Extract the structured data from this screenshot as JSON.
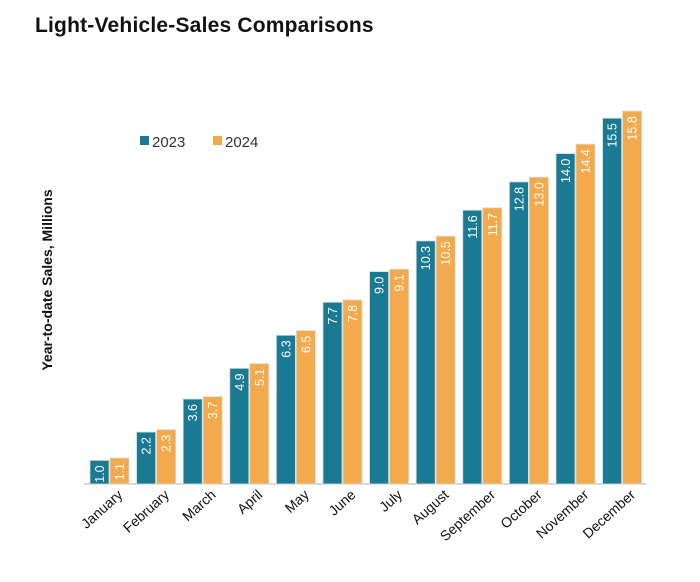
{
  "chart_data": {
    "type": "bar",
    "title": "Light-Vehicle-Sales Comparisons",
    "xlabel": "",
    "ylabel": "Year-to-date Sales, Millions",
    "ylim": [
      0,
      16.5
    ],
    "grid": false,
    "legend_position": "top-left",
    "categories": [
      "January",
      "February",
      "March",
      "April",
      "May",
      "June",
      "July",
      "August",
      "September",
      "October",
      "November",
      "December"
    ],
    "series": [
      {
        "name": "2023",
        "color": "#1a7a94",
        "values": [
          1.0,
          2.2,
          3.6,
          4.9,
          6.3,
          7.7,
          9.0,
          10.3,
          11.6,
          12.8,
          14.0,
          15.5
        ],
        "labels": [
          "1.0",
          "2.2",
          "3.6",
          "4.9",
          "6.3",
          "7.7",
          "9.0",
          "10.3",
          "11.6",
          "12.8",
          "14.0",
          "15.5"
        ]
      },
      {
        "name": "2024",
        "color": "#f2aa4c",
        "values": [
          1.1,
          2.3,
          3.7,
          5.1,
          6.5,
          7.8,
          9.1,
          10.5,
          11.7,
          13.0,
          14.4,
          15.8
        ],
        "labels": [
          "1.1",
          "2.3",
          "3.7",
          "5.1",
          "6.5",
          "7.8",
          "9.1",
          "10.5",
          "11.7",
          "13.0",
          "14.4",
          "15.8"
        ]
      }
    ]
  }
}
